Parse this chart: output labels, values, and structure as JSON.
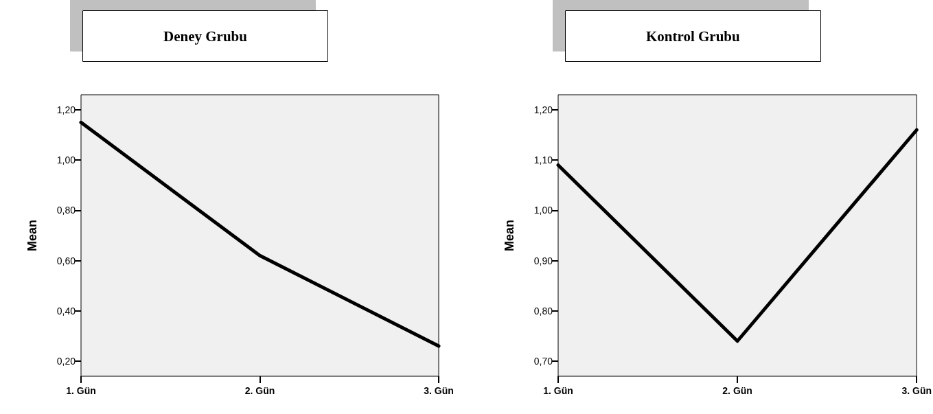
{
  "chart_data": [
    {
      "type": "line",
      "title": "Deney Grubu",
      "ylabel": "Mean",
      "categories": [
        "1. Gün",
        "2. Gün",
        "3. Gün"
      ],
      "series": [
        {
          "color": "#000000",
          "values": [
            1.15,
            0.62,
            0.26
          ]
        }
      ],
      "ylim": [
        0.14,
        1.26
      ],
      "yticks": [
        {
          "value": 0.2,
          "label": "0,20"
        },
        {
          "value": 0.4,
          "label": "0,40"
        },
        {
          "value": 0.6,
          "label": "0,60"
        },
        {
          "value": 0.8,
          "label": "0,80"
        },
        {
          "value": 1.0,
          "label": "1,00"
        },
        {
          "value": 1.2,
          "label": "1,20"
        }
      ],
      "grid": false,
      "marker": "none",
      "line_style": "solid"
    },
    {
      "type": "line",
      "title": "Kontrol Grubu",
      "ylabel": "Mean",
      "categories": [
        "1. Gün",
        "2. Gün",
        "3. Gün"
      ],
      "series": [
        {
          "color": "#000000",
          "values": [
            1.09,
            0.74,
            1.16
          ]
        }
      ],
      "ylim": [
        0.67,
        1.23
      ],
      "yticks": [
        {
          "value": 0.7,
          "label": "0,70"
        },
        {
          "value": 0.8,
          "label": "0,80"
        },
        {
          "value": 0.9,
          "label": "0,90"
        },
        {
          "value": 1.0,
          "label": "1,00"
        },
        {
          "value": 1.1,
          "label": "1,10"
        },
        {
          "value": 1.2,
          "label": "1,20"
        }
      ],
      "grid": false,
      "marker": "none",
      "line_style": "solid"
    }
  ]
}
